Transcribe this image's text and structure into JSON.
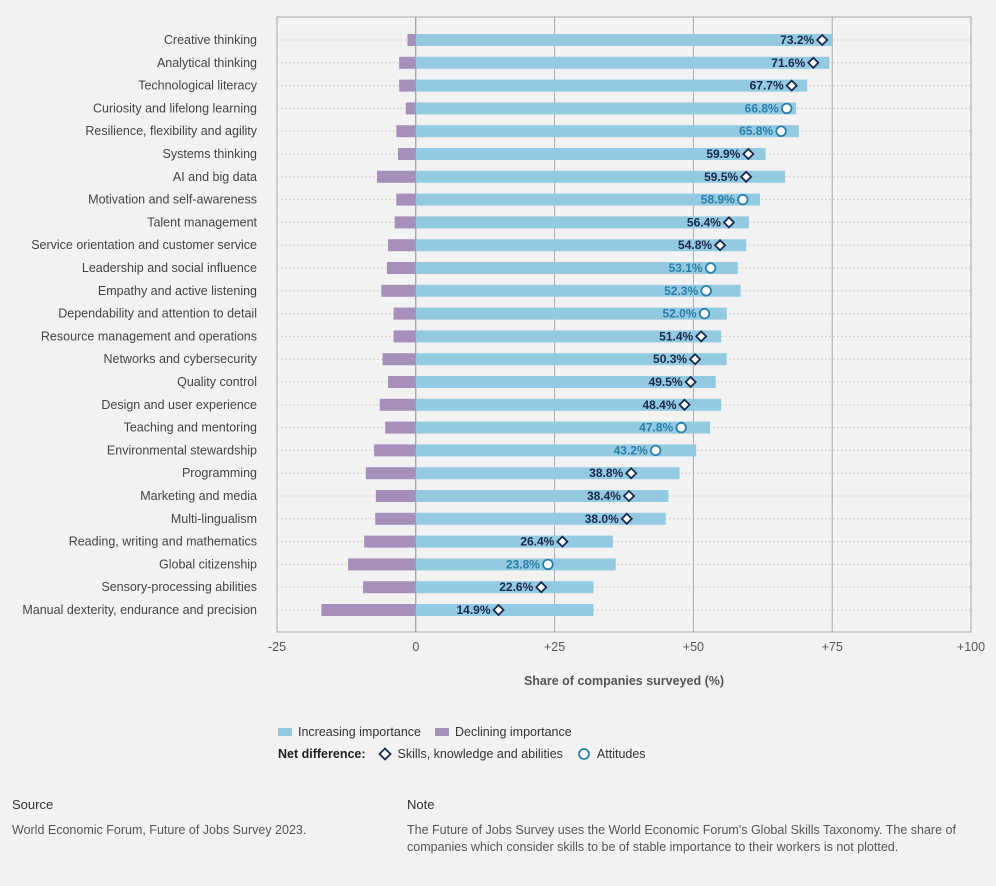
{
  "chart_data": {
    "type": "bar",
    "xlabel": "Share of companies surveyed (%)",
    "xlim": [
      -25,
      100
    ],
    "xticks": [
      "-25",
      "0",
      "+25",
      "+50",
      "+75",
      "+100"
    ],
    "xtick_values": [
      -25,
      0,
      25,
      50,
      75,
      100
    ],
    "grid": true,
    "categories": [
      "Creative thinking",
      "Analytical thinking",
      "Technological literacy",
      "Curiosity and lifelong learning",
      "Resilience, flexibility and agility",
      "Systems thinking",
      "AI and big data",
      "Motivation and self-awareness",
      "Talent management",
      "Service orientation and customer service",
      "Leadership and social influence",
      "Empathy and active listening",
      "Dependability and attention to detail",
      "Resource management and operations",
      "Networks and cybersecurity",
      "Quality control",
      "Design and user experience",
      "Teaching and mentoring",
      "Environmental stewardship",
      "Programming",
      "Marketing and media",
      "Multi-lingualism",
      "Reading, writing and mathematics",
      "Global citizenship",
      "Sensory-processing abilities",
      "Manual dexterity, endurance and precision"
    ],
    "series": [
      {
        "name": "Increasing importance",
        "color": "#93c9e1",
        "values": [
          75,
          74.5,
          70.5,
          68.5,
          69,
          63,
          66.5,
          62,
          60,
          59.5,
          58,
          58.5,
          56,
          55,
          56,
          54,
          55,
          53,
          50.5,
          47.5,
          45.5,
          45,
          35.5,
          36,
          32,
          32
        ]
      },
      {
        "name": "Declining importance",
        "color": "#a68fba",
        "values": [
          -1.5,
          -3,
          -3,
          -1.8,
          -3.5,
          -3.2,
          -7,
          -3.5,
          -3.8,
          -5,
          -5.2,
          -6.2,
          -4,
          -4,
          -6,
          -5,
          -6.5,
          -5.5,
          -7.5,
          -9,
          -7.2,
          -7.3,
          -9.3,
          -12.2,
          -9.5,
          -17
        ]
      }
    ],
    "net_difference": {
      "values": [
        73.2,
        71.6,
        67.7,
        66.8,
        65.8,
        59.9,
        59.5,
        58.9,
        56.4,
        54.8,
        53.1,
        52.3,
        52.0,
        51.4,
        50.3,
        49.5,
        48.4,
        47.8,
        43.2,
        38.8,
        38.4,
        38.0,
        26.4,
        23.8,
        22.6,
        14.9
      ],
      "labels": [
        "73.2%",
        "71.6%",
        "67.7%",
        "66.8%",
        "65.8%",
        "59.9%",
        "59.5%",
        "58.9%",
        "56.4%",
        "54.8%",
        "53.1%",
        "52.3%",
        "52.0%",
        "51.4%",
        "50.3%",
        "49.5%",
        "48.4%",
        "47.8%",
        "43.2%",
        "38.8%",
        "38.4%",
        "38.0%",
        "26.4%",
        "23.8%",
        "22.6%",
        "14.9%"
      ],
      "types": [
        "skills",
        "skills",
        "skills",
        "attitudes",
        "attitudes",
        "skills",
        "skills",
        "attitudes",
        "skills",
        "skills",
        "attitudes",
        "attitudes",
        "attitudes",
        "skills",
        "skills",
        "skills",
        "skills",
        "attitudes",
        "attitudes",
        "skills",
        "skills",
        "skills",
        "skills",
        "attitudes",
        "skills",
        "skills"
      ]
    },
    "marker_colors": {
      "skills": "#1a2a4a",
      "attitudes": "#2a7fa8"
    }
  },
  "legend": {
    "increasing": "Increasing importance",
    "declining": "Declining importance",
    "net_title": "Net difference:",
    "skills": "Skills, knowledge and abilities",
    "attitudes": "Attitudes"
  },
  "footer": {
    "source_heading": "Source",
    "source_text": "World Economic Forum, Future of Jobs Survey 2023.",
    "note_heading": "Note",
    "note_text": "The Future of Jobs Survey uses the World Economic Forum's Global Skills Taxonomy. The share of companies which consider skills to be of stable importance to their workers is not plotted."
  }
}
